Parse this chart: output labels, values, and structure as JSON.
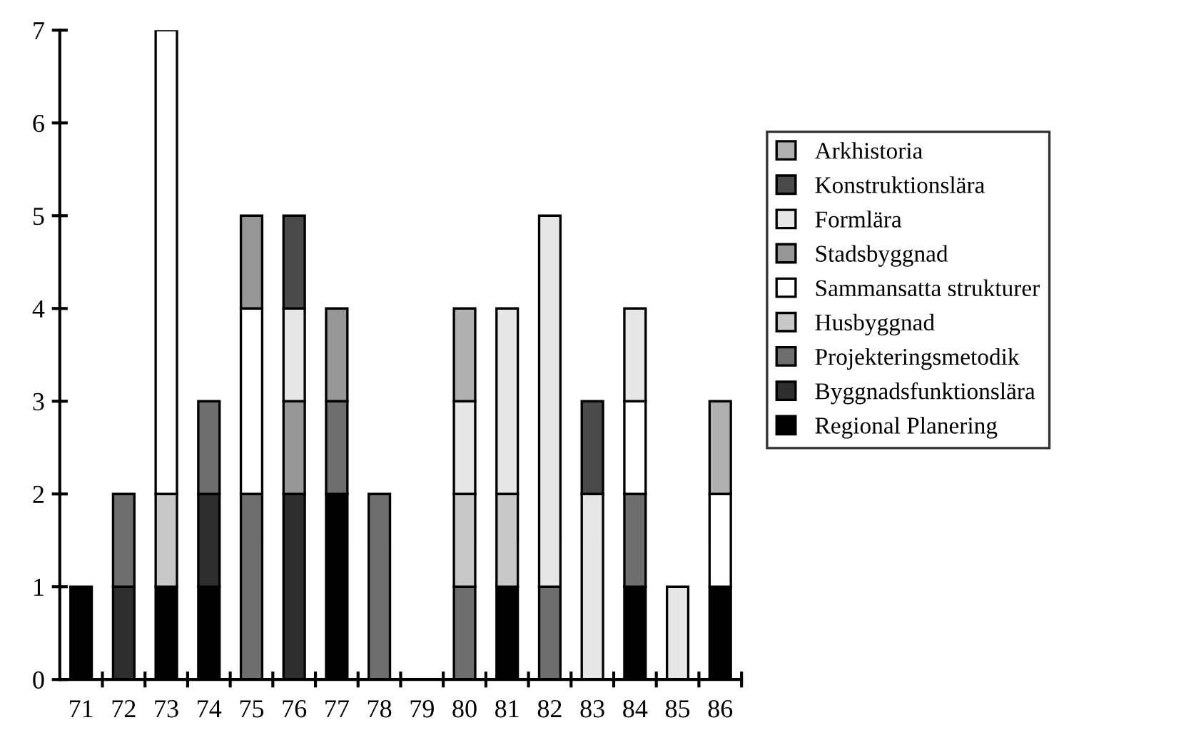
{
  "chart_data": {
    "type": "bar",
    "stacked": true,
    "categories": [
      "71",
      "72",
      "73",
      "74",
      "75",
      "76",
      "77",
      "78",
      "79",
      "80",
      "81",
      "82",
      "83",
      "84",
      "85",
      "86"
    ],
    "ylim": [
      0,
      7
    ],
    "yticks": [
      0,
      1,
      2,
      3,
      4,
      5,
      6,
      7
    ],
    "grid": false,
    "legend": "right",
    "series": [
      {
        "name": "Regional Planering",
        "color": "#000000",
        "values": [
          1,
          0,
          1,
          1,
          0,
          0,
          2,
          0,
          0,
          0,
          1,
          0,
          0,
          1,
          0,
          1
        ]
      },
      {
        "name": "Byggnadsfunktionslära",
        "color": "#2e2e2e",
        "values": [
          0,
          1,
          0,
          1,
          0,
          2,
          0,
          0,
          0,
          0,
          0,
          0,
          0,
          0,
          0,
          0
        ]
      },
      {
        "name": "Projekteringsmetodik",
        "color": "#6e6e6e",
        "values": [
          0,
          1,
          0,
          1,
          2,
          0,
          1,
          2,
          0,
          1,
          0,
          1,
          0,
          1,
          0,
          0
        ]
      },
      {
        "name": "Husbyggnad",
        "color": "#c8c8c8",
        "values": [
          0,
          0,
          1,
          0,
          0,
          0,
          0,
          0,
          0,
          1,
          1,
          0,
          0,
          0,
          0,
          0
        ]
      },
      {
        "name": "Sammansatta strukturer",
        "color": "#ffffff",
        "values": [
          0,
          0,
          5,
          0,
          2,
          0,
          0,
          0,
          0,
          0,
          0,
          0,
          0,
          1,
          0,
          1
        ]
      },
      {
        "name": "Stadsbyggnad",
        "color": "#969696",
        "values": [
          0,
          0,
          0,
          0,
          1,
          1,
          1,
          0,
          0,
          0,
          0,
          0,
          0,
          0,
          0,
          0
        ]
      },
      {
        "name": "Formlära",
        "color": "#e6e6e6",
        "values": [
          0,
          0,
          0,
          0,
          0,
          1,
          0,
          0,
          0,
          1,
          2,
          4,
          2,
          1,
          1,
          0
        ]
      },
      {
        "name": "Konstruktionslära",
        "color": "#4a4a4a",
        "values": [
          0,
          0,
          0,
          0,
          0,
          1,
          0,
          0,
          0,
          0,
          0,
          0,
          1,
          0,
          0,
          0
        ]
      },
      {
        "name": "Arkhistoria",
        "color": "#b0b0b0",
        "values": [
          0,
          0,
          0,
          0,
          0,
          0,
          0,
          0,
          0,
          1,
          0,
          0,
          0,
          0,
          0,
          1
        ]
      }
    ]
  }
}
